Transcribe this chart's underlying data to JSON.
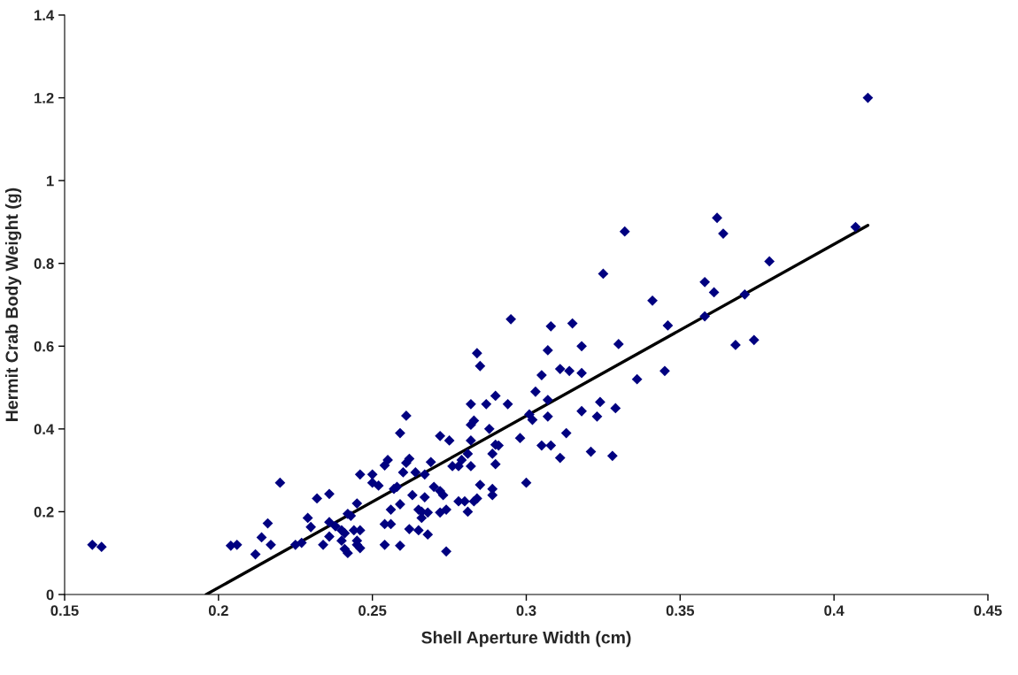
{
  "chart_data": {
    "type": "scatter",
    "xlabel": "Shell Aperture Width (cm)",
    "ylabel": "Hermit Crab Body Weight (g)",
    "xlim": [
      0.15,
      0.45
    ],
    "xticks": [
      0.15,
      0.2,
      0.25,
      0.3,
      0.35,
      0.4,
      0.45
    ],
    "ylim": [
      0,
      1.4
    ],
    "yticks": [
      0,
      0.2,
      0.4,
      0.6,
      0.8,
      1,
      1.2,
      1.4
    ],
    "grid": false,
    "legend": false,
    "series": [
      {
        "color": "#000080",
        "marker": "diamond",
        "x": [
          0.159,
          0.162,
          0.204,
          0.206,
          0.212,
          0.214,
          0.216,
          0.217,
          0.22,
          0.225,
          0.227,
          0.229,
          0.23,
          0.232,
          0.234,
          0.236,
          0.236,
          0.236,
          0.238,
          0.24,
          0.24,
          0.241,
          0.241,
          0.242,
          0.242,
          0.243,
          0.244,
          0.245,
          0.245,
          0.245,
          0.246,
          0.246,
          0.246,
          0.25,
          0.25,
          0.252,
          0.254,
          0.254,
          0.254,
          0.255,
          0.256,
          0.256,
          0.257,
          0.258,
          0.259,
          0.259,
          0.259,
          0.26,
          0.261,
          0.261,
          0.262,
          0.262,
          0.263,
          0.264,
          0.265,
          0.265,
          0.266,
          0.266,
          0.267,
          0.267,
          0.268,
          0.268,
          0.269,
          0.27,
          0.272,
          0.272,
          0.272,
          0.273,
          0.274,
          0.274,
          0.275,
          0.276,
          0.278,
          0.278,
          0.279,
          0.28,
          0.281,
          0.281,
          0.282,
          0.282,
          0.282,
          0.282,
          0.283,
          0.283,
          0.284,
          0.284,
          0.285,
          0.285,
          0.287,
          0.288,
          0.289,
          0.289,
          0.289,
          0.29,
          0.29,
          0.29,
          0.291,
          0.294,
          0.295,
          0.298,
          0.3,
          0.301,
          0.302,
          0.303,
          0.305,
          0.305,
          0.307,
          0.307,
          0.307,
          0.308,
          0.308,
          0.311,
          0.311,
          0.313,
          0.314,
          0.315,
          0.318,
          0.318,
          0.318,
          0.321,
          0.323,
          0.324,
          0.325,
          0.328,
          0.329,
          0.33,
          0.332,
          0.336,
          0.341,
          0.345,
          0.346,
          0.358,
          0.358,
          0.361,
          0.362,
          0.364,
          0.368,
          0.371,
          0.374,
          0.379,
          0.407,
          0.411
        ],
        "values": [
          0.12,
          0.115,
          0.118,
          0.12,
          0.097,
          0.138,
          0.172,
          0.12,
          0.27,
          0.12,
          0.125,
          0.185,
          0.163,
          0.232,
          0.12,
          0.243,
          0.175,
          0.14,
          0.165,
          0.155,
          0.13,
          0.11,
          0.148,
          0.195,
          0.1,
          0.19,
          0.155,
          0.12,
          0.22,
          0.13,
          0.155,
          0.29,
          0.112,
          0.27,
          0.29,
          0.263,
          0.312,
          0.17,
          0.12,
          0.325,
          0.205,
          0.17,
          0.255,
          0.26,
          0.218,
          0.39,
          0.118,
          0.295,
          0.318,
          0.432,
          0.328,
          0.158,
          0.24,
          0.295,
          0.205,
          0.155,
          0.185,
          0.2,
          0.29,
          0.235,
          0.145,
          0.198,
          0.32,
          0.26,
          0.198,
          0.25,
          0.383,
          0.24,
          0.205,
          0.104,
          0.372,
          0.31,
          0.31,
          0.225,
          0.325,
          0.225,
          0.2,
          0.34,
          0.372,
          0.31,
          0.46,
          0.41,
          0.42,
          0.225,
          0.583,
          0.232,
          0.552,
          0.265,
          0.46,
          0.4,
          0.255,
          0.24,
          0.34,
          0.48,
          0.315,
          0.362,
          0.36,
          0.46,
          0.665,
          0.378,
          0.27,
          0.435,
          0.422,
          0.49,
          0.53,
          0.36,
          0.59,
          0.47,
          0.43,
          0.648,
          0.36,
          0.545,
          0.33,
          0.39,
          0.54,
          0.655,
          0.6,
          0.535,
          0.443,
          0.345,
          0.43,
          0.465,
          0.775,
          0.335,
          0.45,
          0.605,
          0.877,
          0.52,
          0.71,
          0.54,
          0.65,
          0.755,
          0.672,
          0.73,
          0.91,
          0.872,
          0.603,
          0.725,
          0.615,
          0.805,
          0.888,
          1.2
        ]
      },
      {
        "type": "line",
        "color": "#000000",
        "line_style": "solid",
        "x": [
          0.196,
          0.411
        ],
        "values": [
          0,
          0.892
        ]
      }
    ]
  }
}
